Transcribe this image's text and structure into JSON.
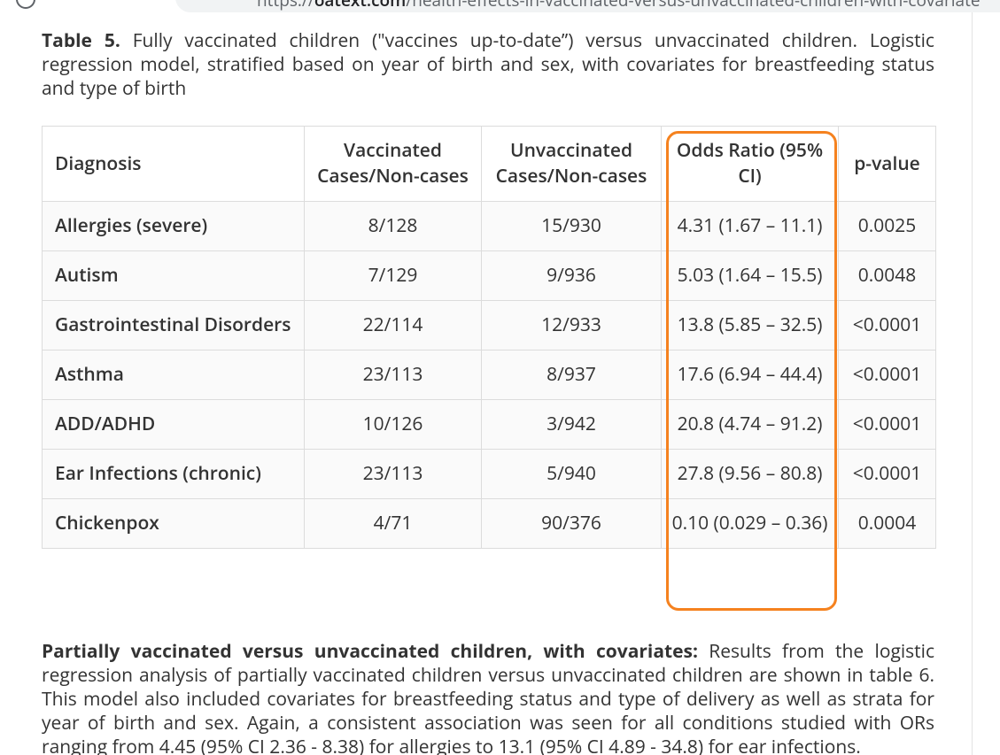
{
  "browser": {
    "url_scheme": "https://",
    "url_domain": "oatext.com",
    "url_path": "/health-effects-in-vaccinated-versus-unvaccinated-children-with-covariate"
  },
  "caption": {
    "label": "Table 5.",
    "text": "Fully vaccinated children (\"vaccines up-to-date”) versus unvaccinated children. Logistic regression model, stratified based on year of birth and sex, with covariates for breastfeeding status and type of birth"
  },
  "table": {
    "header": [
      "Diagnosis",
      "Vaccinated Cases/Non-cases",
      "Unvaccinated Cases/Non-cases",
      "Odds Ratio (95% CI)",
      "p-value"
    ],
    "rows": [
      [
        "Allergies (severe)",
        "8/128",
        "15/930",
        "4.31 (1.67 – 11.1)",
        "0.0025"
      ],
      [
        "Autism",
        "7/129",
        "9/936",
        "5.03 (1.64 – 15.5)",
        "0.0048"
      ],
      [
        "Gastrointestinal Disorders",
        "22/114",
        "12/933",
        "13.8 (5.85 – 32.5)",
        "<0.0001"
      ],
      [
        "Asthma",
        "23/113",
        "8/937",
        "17.6 (6.94 – 44.4)",
        "<0.0001"
      ],
      [
        "ADD/ADHD",
        "10/126",
        "3/942",
        "20.8 (4.74 – 91.2)",
        "<0.0001"
      ],
      [
        "Ear Infections (chronic)",
        "23/113",
        "5/940",
        "27.8 (9.56 – 80.8)",
        "<0.0001"
      ],
      [
        "Chickenpox",
        "4/71",
        "90/376",
        "0.10 (0.029 – 0.36)",
        "0.0004"
      ]
    ]
  },
  "paragraph": {
    "lead": "Partially vaccinated versus unvaccinated children, with covariates:",
    "text": "Results from the logistic regression analysis of partially vaccinated children versus unvaccinated children are shown in table 6. This model also included covariates for breastfeeding status and type of delivery as well as strata for year of birth and sex. Again, a consistent association was seen for all conditions studied with ORs ranging from 4.45 (95% CI 2.36 - 8.38) for allergies to 13.1 (95% CI 4.89 - 34.8) for ear infections."
  }
}
